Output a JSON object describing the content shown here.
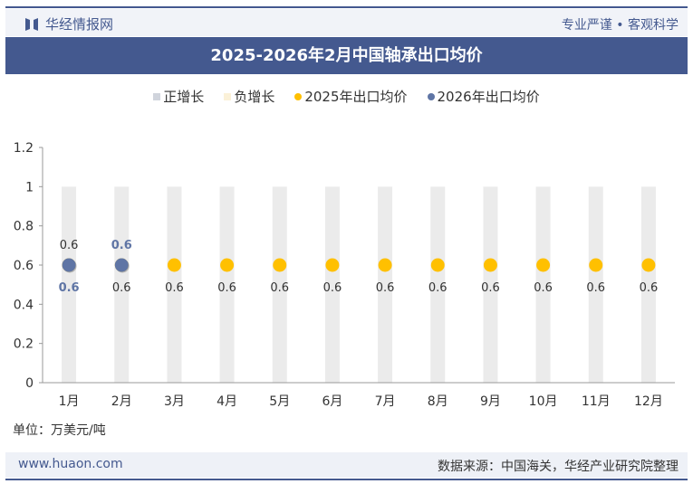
{
  "header": {
    "brand": "华经情报网",
    "slogan": "专业严谨 • 客观科学"
  },
  "chart_data": {
    "type": "line",
    "title": "2025-2026年2月中国轴承出口均价",
    "categories": [
      "1月",
      "2月",
      "3月",
      "4月",
      "5月",
      "6月",
      "7月",
      "8月",
      "9月",
      "10月",
      "11月",
      "12月"
    ],
    "legend": [
      {
        "name": "正增长",
        "color": "#d0d4dc"
      },
      {
        "name": "负增长",
        "color": "#fbf1d8"
      },
      {
        "name": "2025年出口均价",
        "color": "#ffc000"
      },
      {
        "name": "2026年出口均价",
        "color": "#5f75a5"
      }
    ],
    "series": [
      {
        "name": "2025年出口均价",
        "color": "#ffc000",
        "values": [
          0.6,
          0.6,
          0.6,
          0.6,
          0.6,
          0.6,
          0.6,
          0.6,
          0.6,
          0.6,
          0.6,
          0.6
        ]
      },
      {
        "name": "2026年出口均价",
        "color": "#5f75a5",
        "values": [
          0.6,
          0.6,
          null,
          null,
          null,
          null,
          null,
          null,
          null,
          null,
          null,
          null
        ]
      }
    ],
    "background_bars": {
      "color": "#ebebeb",
      "values": [
        1,
        1,
        1,
        1,
        1,
        1,
        1,
        1,
        1,
        1,
        1,
        1
      ]
    },
    "yticks": [
      "0",
      "0.2",
      "0.4",
      "0.6",
      "0.8",
      "1",
      "1.2"
    ],
    "ylim": [
      0,
      1.2
    ],
    "legend_position": "top",
    "grid": false
  },
  "unit": "单位：万美元/吨",
  "footer": {
    "site": "www.huaon.com",
    "source": "数据来源：中国海关，华经产业研究院整理"
  }
}
